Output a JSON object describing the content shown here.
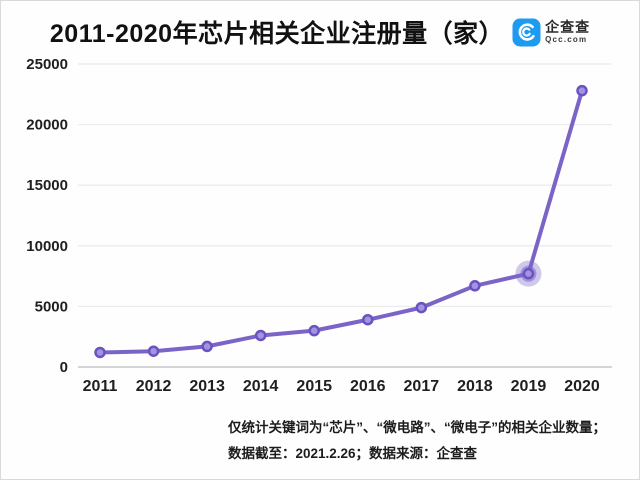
{
  "header": {
    "title": "2011-2020年芯片相关企业注册量（家）",
    "logo": {
      "name": "企查查",
      "domain": "Qcc.com",
      "brand_color": "#1d9bf0"
    }
  },
  "footnote": {
    "line1": "仅统计关键词为“芯片”、“微电路”、“微电子”的相关企业数量；",
    "line2": "数据截至：2021.2.26；数据来源：企查查"
  },
  "chart_data": {
    "type": "line",
    "title": "2011-2020年芯片相关企业注册量（家）",
    "categories": [
      "2011",
      "2012",
      "2013",
      "2014",
      "2015",
      "2016",
      "2017",
      "2018",
      "2019",
      "2020"
    ],
    "values": [
      1200,
      1300,
      1700,
      2600,
      3000,
      3900,
      4900,
      6700,
      7700,
      22800
    ],
    "xlabel": "",
    "ylabel": "",
    "ylim": [
      0,
      25000
    ],
    "ytick_step": 5000,
    "grid": true,
    "legend": "none",
    "highlight_index": 8,
    "line_color": "#7a64c8",
    "marker_fill": "#a393e2",
    "marker_stroke": "#6a53bf",
    "gridline_color": "#ececec",
    "axis_line_color": "#d5d5d5"
  }
}
